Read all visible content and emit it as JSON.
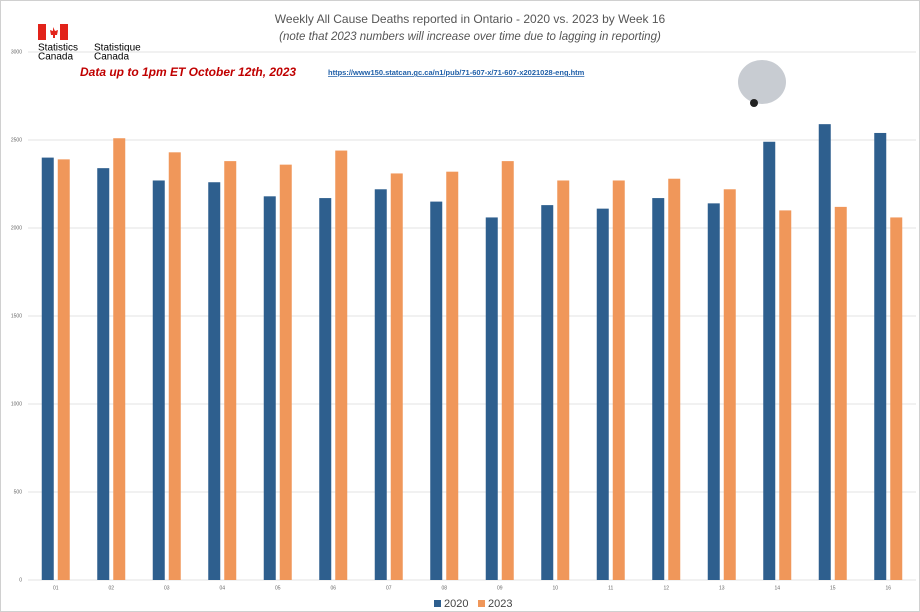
{
  "chart_data": {
    "type": "bar",
    "title": "Weekly All Cause Deaths reported in Ontario - 2020 vs. 2023 by Week 16",
    "subtitle": "(note that 2023 numbers will increase over time due to lagging in reporting)",
    "annotation": "Data up to 1pm ET October 12th, 2023",
    "source_url": "https://www150.statcan.gc.ca/n1/pub/71-607-x/71-607-x2021028-eng.htm",
    "logo_lines": [
      "Statistics",
      "Canada",
      "Statistique",
      "Canada"
    ],
    "categories": [
      "01",
      "02",
      "03",
      "04",
      "05",
      "06",
      "07",
      "08",
      "09",
      "10",
      "11",
      "12",
      "13",
      "14",
      "15",
      "16"
    ],
    "series": [
      {
        "name": "2020",
        "color": "#2e5f8e",
        "values": [
          2400,
          2340,
          2270,
          2260,
          2180,
          2170,
          2220,
          2150,
          2060,
          2130,
          2110,
          2170,
          2140,
          2490,
          2590,
          2540
        ]
      },
      {
        "name": "2023",
        "color": "#f0975a",
        "values": [
          2390,
          2510,
          2430,
          2380,
          2360,
          2440,
          2310,
          2320,
          2380,
          2270,
          2270,
          2280,
          2220,
          2100,
          2120,
          2060
        ]
      }
    ],
    "ylim": [
      0,
      3000
    ],
    "yticks": [
      0,
      500,
      1000,
      1500,
      2000,
      2500,
      3000
    ],
    "grid": true
  }
}
